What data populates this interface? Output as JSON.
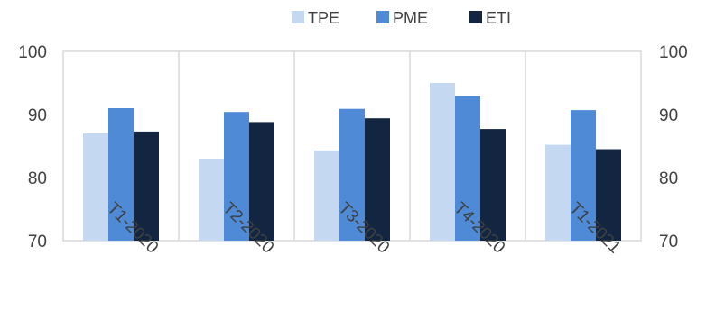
{
  "chart_data": {
    "type": "bar",
    "title": "",
    "xlabel": "",
    "ylabel": "",
    "categories": [
      "T1-2020",
      "T2-2020",
      "T3-2020",
      "T4-2020",
      "T1-2021"
    ],
    "series": [
      {
        "name": "TPE",
        "values": [
          87,
          83,
          84.3,
          95,
          85.2
        ],
        "color": "#c5d8f1"
      },
      {
        "name": "PME",
        "values": [
          91,
          90.4,
          90.9,
          92.9,
          90.7
        ],
        "color": "#4f8ad6"
      },
      {
        "name": "ETI",
        "values": [
          87.3,
          88.8,
          89.4,
          87.7,
          84.5
        ],
        "color": "#132641"
      }
    ],
    "ylim": [
      70,
      100
    ],
    "yticks": [
      70,
      80,
      90,
      100
    ],
    "secondary_y_axis": true,
    "grid": "vertical category separators",
    "legend": "top-center"
  }
}
